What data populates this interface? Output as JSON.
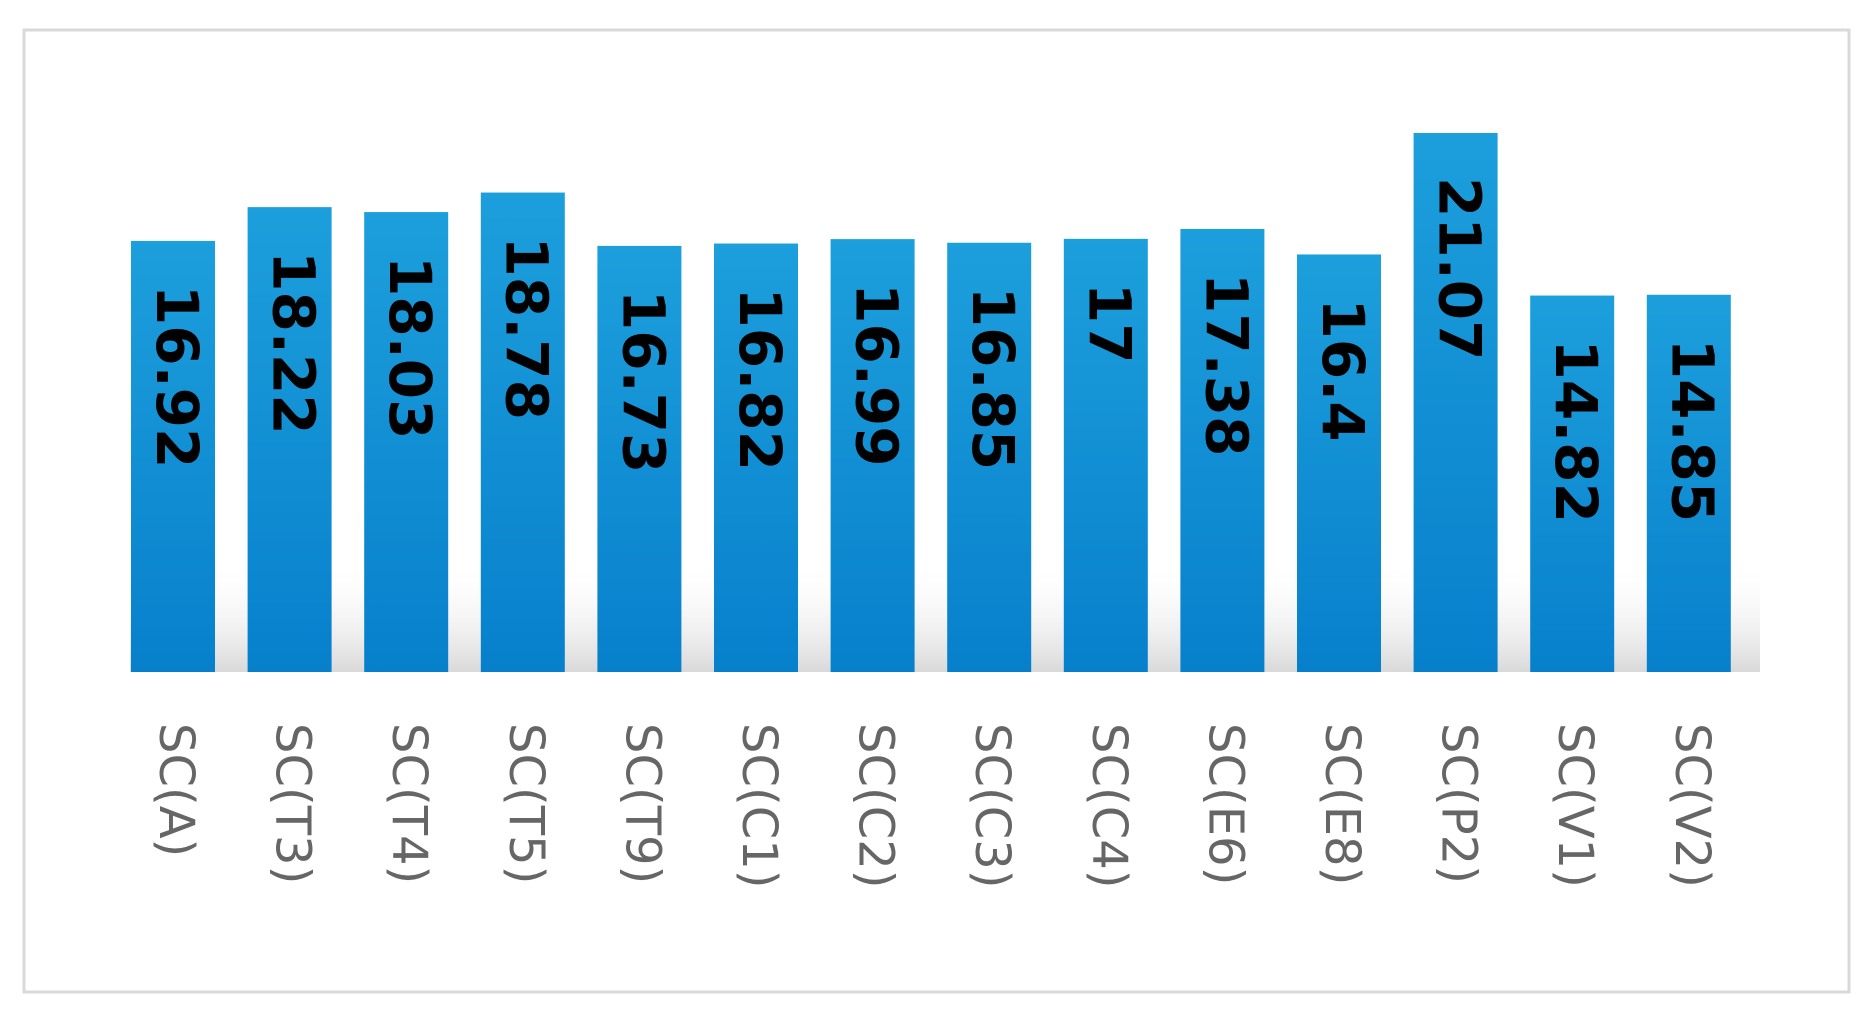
{
  "chart_data": {
    "type": "bar",
    "categories": [
      "SC(A)",
      "SC(T3)",
      "SC(T4)",
      "SC(T5)",
      "SC(T9)",
      "SC(C1)",
      "SC(C2)",
      "SC(C3)",
      "SC(C4)",
      "SC(E6)",
      "SC(E8)",
      "SC(P2)",
      "SC(V1)",
      "SC(V2)"
    ],
    "values": [
      16.92,
      18.22,
      18.03,
      18.78,
      16.73,
      16.82,
      16.99,
      16.85,
      17,
      17.38,
      16.4,
      21.07,
      14.82,
      14.85
    ],
    "color": "#138dd3"
  }
}
